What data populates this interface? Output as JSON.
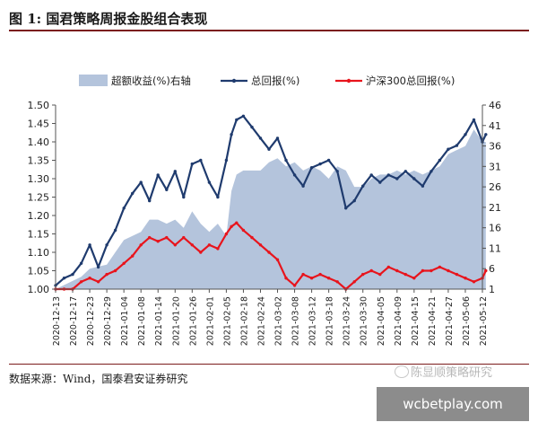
{
  "header": {
    "title": "图 1:  国君策略周报金股组合表现"
  },
  "footer": {
    "source": "数据来源：Wind，国泰君安证券研究"
  },
  "watermark": {
    "text": "陈显顺策略研究"
  },
  "badge": {
    "text": "wcbetplay.com"
  },
  "colors": {
    "excess": "#b4c4dc",
    "total": "#1f3b6e",
    "index": "#e8141c"
  },
  "chart_data": {
    "type": "line",
    "legend": [
      "超额收益(%)右轴",
      "总回报(%)",
      "沪深300总回报(%)"
    ],
    "legend_position": "top",
    "y_left": {
      "range": [
        1.0,
        1.5
      ],
      "ticks": [
        "1.00",
        "1.05",
        "1.10",
        "1.15",
        "1.20",
        "1.25",
        "1.30",
        "1.35",
        "1.40",
        "1.45",
        "1.50"
      ]
    },
    "y_right": {
      "range": [
        1,
        46
      ],
      "ticks": [
        "1",
        "6",
        "11",
        "16",
        "21",
        "26",
        "31",
        "36",
        "41",
        "46"
      ]
    },
    "x_ticks": [
      "2020-12-13",
      "2020-12-17",
      "2020-12-23",
      "2020-12-29",
      "2021-01-04",
      "2021-01-08",
      "2021-01-14",
      "2021-01-20",
      "2021-01-26",
      "2021-02-01",
      "2021-02-05",
      "2021-02-18",
      "2021-02-24",
      "2021-03-02",
      "2021-03-08",
      "2021-03-12",
      "2021-03-18",
      "2021-03-24",
      "2021-03-30",
      "2021-04-05",
      "2021-04-09",
      "2021-04-15",
      "2021-04-21",
      "2021-04-27",
      "2021-05-06",
      "2021-05-12"
    ],
    "grid": false,
    "series": [
      {
        "name": "超额收益(%)右轴",
        "type": "area",
        "axis": "right",
        "x": [
          0,
          1,
          1.5,
          2,
          2.5,
          3,
          3.5,
          4,
          4.5,
          5,
          5.5,
          6,
          6.5,
          7,
          7.5,
          8,
          8.5,
          9,
          9.5,
          10,
          10.3,
          10.6,
          11,
          11.5,
          12,
          12.5,
          13,
          13.5,
          14,
          14.5,
          15,
          15.5,
          16,
          16.5,
          17,
          17.5,
          18,
          18.5,
          19,
          19.5,
          20,
          20.5,
          21,
          21.5,
          22,
          22.5,
          23,
          23.5,
          24,
          24.5,
          25,
          25.2
        ],
        "values": [
          1,
          3,
          4,
          6,
          6.5,
          7,
          10,
          13,
          14,
          15,
          18,
          18,
          17,
          18,
          16,
          20,
          17,
          15,
          17,
          14,
          25,
          29,
          30,
          30,
          30,
          32,
          33,
          31,
          32,
          30,
          31,
          30,
          28,
          31,
          30,
          26,
          26,
          28,
          29,
          29,
          30,
          29,
          30,
          29,
          30,
          31,
          34,
          35,
          36,
          40,
          37,
          37
        ]
      },
      {
        "name": "总回报(%)",
        "type": "line",
        "axis": "left",
        "x": [
          0,
          0.5,
          1,
          1.5,
          2,
          2.5,
          3,
          3.5,
          4,
          4.5,
          5,
          5.5,
          6,
          6.5,
          7,
          7.5,
          8,
          8.5,
          9,
          9.5,
          10,
          10.3,
          10.6,
          11,
          11.5,
          12,
          12.5,
          13,
          13.5,
          14,
          14.5,
          15,
          15.5,
          16,
          16.5,
          17,
          17.5,
          18,
          18.5,
          19,
          19.5,
          20,
          20.5,
          21,
          21.5,
          22,
          22.5,
          23,
          23.5,
          24,
          24.5,
          25,
          25.2
        ],
        "values": [
          1.01,
          1.03,
          1.04,
          1.07,
          1.12,
          1.06,
          1.12,
          1.16,
          1.22,
          1.26,
          1.29,
          1.24,
          1.31,
          1.27,
          1.32,
          1.25,
          1.34,
          1.35,
          1.29,
          1.25,
          1.35,
          1.42,
          1.46,
          1.47,
          1.44,
          1.41,
          1.38,
          1.41,
          1.35,
          1.31,
          1.28,
          1.33,
          1.34,
          1.35,
          1.32,
          1.22,
          1.24,
          1.28,
          1.31,
          1.29,
          1.31,
          1.3,
          1.32,
          1.3,
          1.28,
          1.32,
          1.35,
          1.38,
          1.39,
          1.42,
          1.46,
          1.4,
          1.42
        ]
      },
      {
        "name": "沪深300总回报(%)",
        "type": "line",
        "axis": "left",
        "x": [
          0,
          0.5,
          1,
          1.5,
          2,
          2.5,
          3,
          3.5,
          4,
          4.5,
          5,
          5.5,
          6,
          6.5,
          7,
          7.5,
          8,
          8.5,
          9,
          9.5,
          10,
          10.3,
          10.6,
          11,
          11.5,
          12,
          12.5,
          13,
          13.5,
          14,
          14.5,
          15,
          15.5,
          16,
          16.5,
          17,
          17.5,
          18,
          18.5,
          19,
          19.5,
          20,
          20.5,
          21,
          21.5,
          22,
          22.5,
          23,
          23.5,
          24,
          24.5,
          25,
          25.2
        ],
        "values": [
          1.0,
          1.0,
          1.0,
          1.02,
          1.03,
          1.02,
          1.04,
          1.05,
          1.07,
          1.09,
          1.12,
          1.14,
          1.13,
          1.14,
          1.12,
          1.14,
          1.12,
          1.1,
          1.12,
          1.11,
          1.15,
          1.17,
          1.18,
          1.16,
          1.14,
          1.12,
          1.1,
          1.08,
          1.03,
          1.01,
          1.04,
          1.03,
          1.04,
          1.03,
          1.02,
          1.0,
          1.02,
          1.04,
          1.05,
          1.04,
          1.06,
          1.05,
          1.04,
          1.03,
          1.05,
          1.05,
          1.06,
          1.05,
          1.04,
          1.03,
          1.02,
          1.03,
          1.05
        ]
      }
    ]
  }
}
